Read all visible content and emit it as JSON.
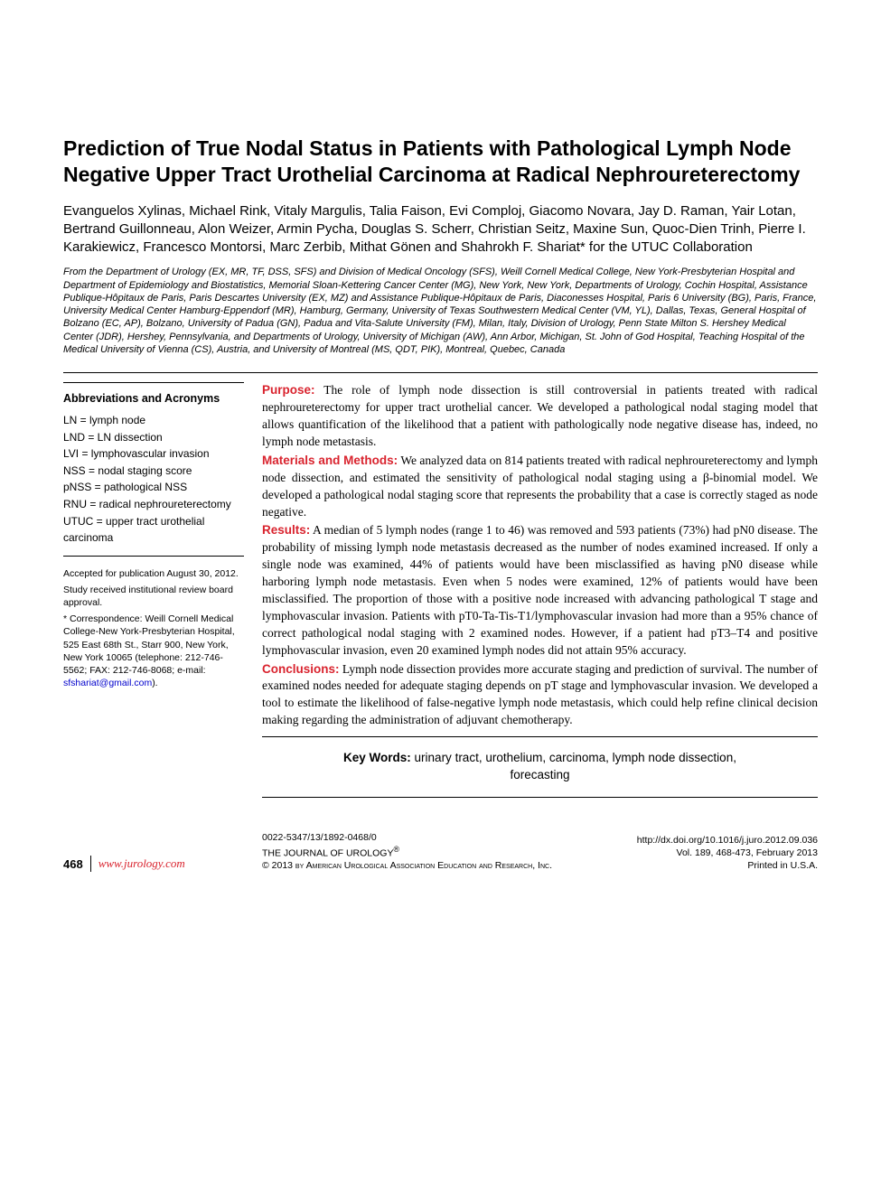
{
  "title": "Prediction of True Nodal Status in Patients with Pathological Lymph Node Negative Upper Tract Urothelial Carcinoma at Radical Nephroureterectomy",
  "authors": "Evanguelos Xylinas, Michael Rink, Vitaly Margulis, Talia Faison, Evi Comploj, Giacomo Novara, Jay D. Raman, Yair Lotan, Bertrand Guillonneau, Alon Weizer, Armin Pycha, Douglas S. Scherr, Christian Seitz, Maxine Sun, Quoc-Dien Trinh, Pierre I. Karakiewicz, Francesco Montorsi, Marc Zerbib, Mithat Gönen and Shahrokh F. Shariat* for the UTUC Collaboration",
  "affiliations": "From the Department of Urology (EX, MR, TF, DSS, SFS) and Division of Medical Oncology (SFS), Weill Cornell Medical College, New York-Presbyterian Hospital and Department of Epidemiology and Biostatistics, Memorial Sloan-Kettering Cancer Center (MG), New York, New York, Departments of Urology, Cochin Hospital, Assistance Publique-Hôpitaux de Paris, Paris Descartes University (EX, MZ) and Assistance Publique-Hôpitaux de Paris, Diaconesses Hospital, Paris 6 University (BG), Paris, France, University Medical Center Hamburg-Eppendorf (MR), Hamburg, Germany, University of Texas Southwestern Medical Center (VM, YL), Dallas, Texas, General Hospital of Bolzano (EC, AP), Bolzano, University of Padua (GN), Padua and Vita-Salute University (FM), Milan, Italy, Division of Urology, Penn State Milton S. Hershey Medical Center (JDR), Hershey, Pennsylvania, and Departments of Urology, University of Michigan (AW), Ann Arbor, Michigan, St. John of God Hospital, Teaching Hospital of the Medical University of Vienna (CS), Austria, and University of Montreal (MS, QDT, PIK), Montreal, Quebec, Canada",
  "abbrev": {
    "heading": "Abbreviations and Acronyms",
    "items": [
      "LN = lymph node",
      "LND = LN dissection",
      "LVI = lymphovascular invasion",
      "NSS = nodal staging score",
      "pNSS = pathological NSS",
      "RNU = radical nephroureterectomy",
      "UTUC = upper tract urothelial carcinoma"
    ]
  },
  "footnotes": {
    "accepted": "Accepted for publication August 30, 2012.",
    "irb": "Study received institutional review board approval.",
    "correspondence": "* Correspondence: Weill Cornell Medical College-New York-Presbyterian Hospital, 525 East 68th St., Starr 900, New York, New York 10065 (telephone: 212-746-5562; FAX: 212-746-8068; e-mail: ",
    "email": "sfshariat@gmail.com",
    "closing": ")."
  },
  "abstract": {
    "purpose_label": "Purpose:",
    "purpose": " The role of lymph node dissection is still controversial in patients treated with radical nephroureterectomy for upper tract urothelial cancer. We developed a pathological nodal staging model that allows quantification of the likelihood that a patient with pathologically node negative disease has, indeed, no lymph node metastasis.",
    "methods_label": "Materials and Methods:",
    "methods": " We analyzed data on 814 patients treated with radical nephroureterectomy and lymph node dissection, and estimated the sensitivity of pathological nodal staging using a β-binomial model. We developed a pathological nodal staging score that represents the probability that a case is correctly staged as node negative.",
    "results_label": "Results:",
    "results": " A median of 5 lymph nodes (range 1 to 46) was removed and 593 patients (73%) had pN0 disease. The probability of missing lymph node metastasis decreased as the number of nodes examined increased. If only a single node was examined, 44% of patients would have been misclassified as having pN0 disease while harboring lymph node metastasis. Even when 5 nodes were examined, 12% of patients would have been misclassified. The proportion of those with a positive node increased with advancing pathological T stage and lymphovascular invasion. Patients with pT0-Ta-Tis-T1/lymphovascular invasion had more than a 95% chance of correct pathological nodal staging with 2 examined nodes. However, if a patient had pT3–T4 and positive lymphovascular invasion, even 20 examined lymph nodes did not attain 95% accuracy.",
    "conclusions_label": "Conclusions:",
    "conclusions": " Lymph node dissection provides more accurate staging and prediction of survival. The number of examined nodes needed for adequate staging depends on pT stage and lymphovascular invasion. We developed a tool to estimate the likelihood of false-negative lymph node metastasis, which could help refine clinical decision making regarding the administration of adjuvant chemotherapy."
  },
  "keywords": {
    "label": "Key Words:",
    "text": " urinary tract, urothelium, carcinoma, lymph node dissection, forecasting"
  },
  "footer": {
    "page": "468",
    "site": "www.jurology.com",
    "issn": "0022-5347/13/1892-0468/0",
    "journal": "THE JOURNAL OF UROLOGY",
    "reg": "®",
    "copyright": "© 2013 by American Urological Association Education and Research, Inc.",
    "doi": "http://dx.doi.org/10.1016/j.juro.2012.09.036",
    "citation": "Vol. 189, 468-473, February 2013",
    "printed": "Printed in U.S.A."
  },
  "colors": {
    "accent": "#d9232e",
    "link": "#0000cc",
    "text": "#000000",
    "bg": "#ffffff"
  }
}
